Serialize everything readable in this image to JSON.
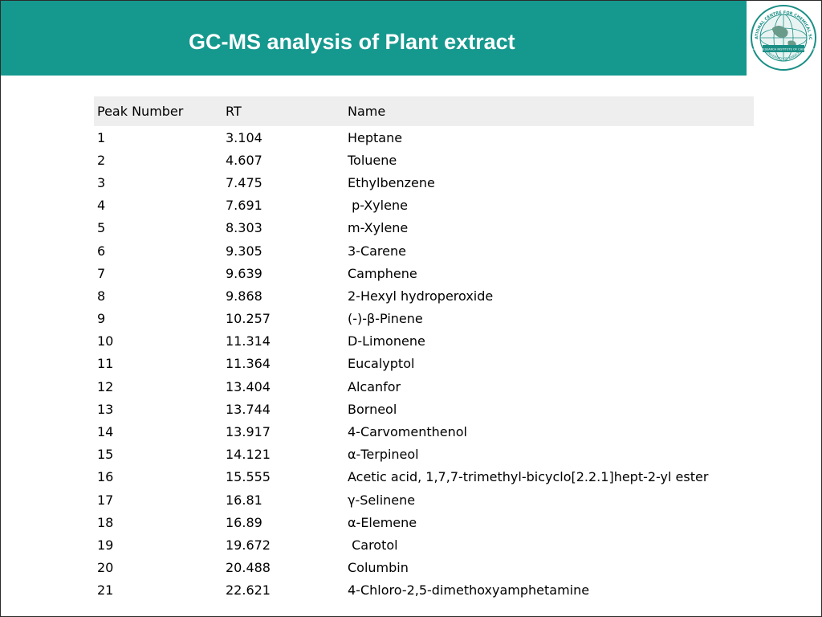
{
  "slide": {
    "title": "GC-MS analysis of Plant extract",
    "header_color": "#15988e",
    "logo": {
      "icon": "globe-seal-icon",
      "text_top": "INTERNATIONAL CENTRE FOR CHEMICAL SCIENCES",
      "text_band": "H.E.J. RESEARCH INSTITUTE OF CHEMISTRY",
      "text_bottom": "UNIVERSITY OF KARACHI"
    }
  },
  "table": {
    "headers": [
      "Peak Number",
      "RT",
      "Name"
    ],
    "rows": [
      [
        "1",
        "3.104",
        "Heptane"
      ],
      [
        "2",
        "4.607",
        "Toluene"
      ],
      [
        "3",
        "7.475",
        "Ethylbenzene"
      ],
      [
        "4",
        "7.691",
        " p-Xylene"
      ],
      [
        "5",
        "8.303",
        "m-Xylene"
      ],
      [
        "6",
        "9.305",
        "3-Carene"
      ],
      [
        "7",
        "9.639",
        "Camphene"
      ],
      [
        "8",
        "9.868",
        "2-Hexyl hydroperoxide"
      ],
      [
        "9",
        "10.257",
        "(-)-β-Pinene"
      ],
      [
        "10",
        "11.314",
        "D-Limonene"
      ],
      [
        "11",
        "11.364",
        "Eucalyptol"
      ],
      [
        "12",
        "13.404",
        "Alcanfor"
      ],
      [
        "13",
        "13.744",
        "Borneol"
      ],
      [
        "14",
        "13.917",
        "4-Carvomenthenol"
      ],
      [
        "15",
        "14.121",
        "α-Terpineol"
      ],
      [
        "16",
        "15.555",
        "Acetic acid, 1,7,7-trimethyl-bicyclo[2.2.1]hept-2-yl ester"
      ],
      [
        "17",
        "16.81",
        "γ-Selinene"
      ],
      [
        "18",
        "16.89",
        "α-Elemene"
      ],
      [
        "19",
        "19.672",
        " Carotol"
      ],
      [
        "20",
        "20.488",
        "Columbin"
      ],
      [
        "21",
        "22.621",
        "4-Chloro-2,5-dimethoxyamphetamine"
      ]
    ]
  }
}
